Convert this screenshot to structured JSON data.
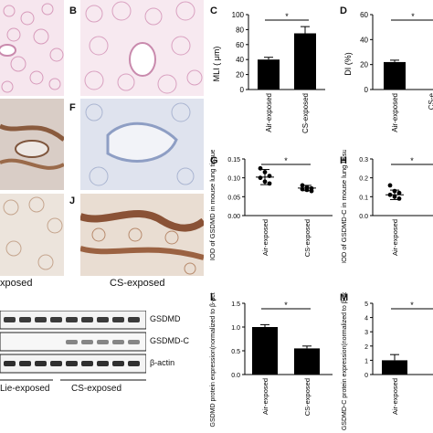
{
  "panel_letters": {
    "B": "B",
    "C": "C",
    "D": "D",
    "F": "F",
    "G": "G",
    "H": "H",
    "J": "J",
    "L": "L",
    "M": "M"
  },
  "group_labels": {
    "left_exposed": "xposed",
    "cs_exposed": "CS-exposed",
    "wb_left": "Lie-exposed",
    "wb_cs": "CS-exposed"
  },
  "blot_labels": {
    "gsdmd": "GSDMD",
    "gsdmd_c": "GSDMD-C",
    "actin": "β-actin"
  },
  "colors": {
    "bar": "#000000",
    "he_stain": "#e8b8d0",
    "ihc_brown": "#9a6a4a",
    "ihc_blue": "#b9c4dd"
  },
  "chart_data": [
    {
      "id": "C",
      "type": "bar",
      "categories": [
        "Air-exposed",
        "CS-exposed"
      ],
      "values": [
        40,
        75
      ],
      "errors": [
        3,
        9
      ],
      "ylabel": "MLI ( μm)",
      "ylim": [
        0,
        100
      ],
      "yticks": [
        "0",
        "20",
        "40",
        "60",
        "80",
        "100"
      ],
      "significance": "*"
    },
    {
      "id": "D",
      "type": "bar",
      "categories": [
        "Air-exposed",
        "CS-e"
      ],
      "values": [
        22,
        null
      ],
      "errors": [
        1.5,
        null
      ],
      "ylabel": "DI (%)",
      "ylim": [
        0,
        60
      ],
      "yticks": [
        "0",
        "20",
        "40",
        "60"
      ],
      "significance": "*"
    },
    {
      "id": "G",
      "type": "scatter",
      "categories": [
        "Air-exposed",
        "CS-exposed"
      ],
      "points": [
        [
          0.125,
          0.115,
          0.105,
          0.1,
          0.09,
          0.085
        ],
        [
          0.08,
          0.075,
          0.072,
          0.07,
          0.068,
          0.065
        ]
      ],
      "means": [
        0.102,
        0.073
      ],
      "sd": [
        0.02,
        0.007
      ],
      "ylabel": "IOD of GSDMD in mouse lung tissue",
      "ylim": [
        0,
        0.15
      ],
      "yticks": [
        "0.00",
        "0.05",
        "0.10",
        "0.15"
      ],
      "significance": "*"
    },
    {
      "id": "H",
      "type": "scatter",
      "categories": [
        "Air-exposed"
      ],
      "points": [
        [
          0.16,
          0.13,
          0.12,
          0.11,
          0.1,
          0.09
        ]
      ],
      "means": [
        0.11
      ],
      "sd": [
        0.025
      ],
      "ylabel": "IOD of GSDMD-C in mouse lung tissue",
      "ylim": [
        0,
        0.3
      ],
      "yticks": [
        "0.0",
        "0.1",
        "0.2",
        "0.3"
      ],
      "significance": "*"
    },
    {
      "id": "L",
      "type": "bar",
      "categories": [
        "Air-exposed",
        "CS-exposed"
      ],
      "values": [
        1.0,
        0.55
      ],
      "errors": [
        0.05,
        0.05
      ],
      "ylabel": "GSDMD protein expression(normalized to β-actin)",
      "ylim": [
        0,
        1.5
      ],
      "yticks": [
        "0.0",
        "0.5",
        "1.0",
        "1.5"
      ],
      "significance": "*"
    },
    {
      "id": "M",
      "type": "bar",
      "categories": [
        "Air-exposed"
      ],
      "values": [
        1.0
      ],
      "errors": [
        0.4
      ],
      "ylabel": "GSDMD-C protein expression(normalized to β-actin)",
      "ylim": [
        0,
        5
      ],
      "yticks": [
        "0",
        "1",
        "2",
        "3",
        "4",
        "5"
      ],
      "significance": "*"
    }
  ]
}
